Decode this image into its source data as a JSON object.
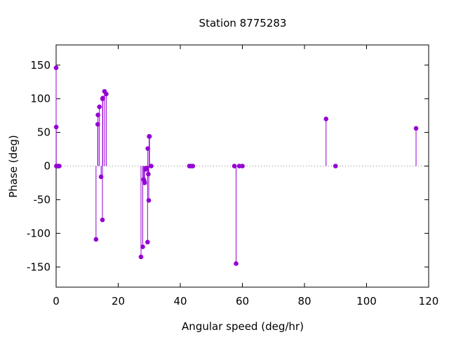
{
  "chart_data": {
    "type": "scatter",
    "style": "impulses-with-points",
    "title": "Station 8775283",
    "xlabel": "Angular speed (deg/hr)",
    "ylabel": "Phase (deg)",
    "xlim": [
      0,
      120
    ],
    "ylim": [
      -180,
      180
    ],
    "xticks": [
      0,
      20,
      40,
      60,
      80,
      100,
      120
    ],
    "yticks": [
      -150,
      -100,
      -50,
      0,
      50,
      100,
      150
    ],
    "zero_line": "dotted",
    "grid": false,
    "legend": "none",
    "series": [
      {
        "color": "#9400d3",
        "points": [
          {
            "x": 0.0,
            "y": 146
          },
          {
            "x": 0.04,
            "y": 58
          },
          {
            "x": 0.08,
            "y": 0
          },
          {
            "x": 0.5,
            "y": 0
          },
          {
            "x": 0.55,
            "y": 0
          },
          {
            "x": 1.0,
            "y": 0
          },
          {
            "x": 12.85,
            "y": -109
          },
          {
            "x": 13.4,
            "y": 62
          },
          {
            "x": 13.47,
            "y": 76
          },
          {
            "x": 13.94,
            "y": 88
          },
          {
            "x": 14.49,
            "y": -16
          },
          {
            "x": 14.92,
            "y": -80
          },
          {
            "x": 14.96,
            "y": 100
          },
          {
            "x": 15.04,
            "y": 101
          },
          {
            "x": 15.59,
            "y": 111
          },
          {
            "x": 16.14,
            "y": 107
          },
          {
            "x": 27.34,
            "y": -135
          },
          {
            "x": 27.9,
            "y": -120
          },
          {
            "x": 28.2,
            "y": -20
          },
          {
            "x": 28.44,
            "y": -23
          },
          {
            "x": 28.51,
            "y": -25
          },
          {
            "x": 28.8,
            "y": -5
          },
          {
            "x": 29.46,
            "y": -113
          },
          {
            "x": 29.53,
            "y": 26
          },
          {
            "x": 29.0,
            "y": -3
          },
          {
            "x": 29.7,
            "y": -12
          },
          {
            "x": 29.84,
            "y": -51
          },
          {
            "x": 29.96,
            "y": 44
          },
          {
            "x": 30.08,
            "y": 44
          },
          {
            "x": 30.63,
            "y": 0
          },
          {
            "x": 42.93,
            "y": 0
          },
          {
            "x": 43.48,
            "y": 0
          },
          {
            "x": 44.03,
            "y": 0
          },
          {
            "x": 57.42,
            "y": 0
          },
          {
            "x": 57.97,
            "y": -145
          },
          {
            "x": 58.98,
            "y": 0
          },
          {
            "x": 60.0,
            "y": 0
          },
          {
            "x": 86.95,
            "y": 70
          },
          {
            "x": 90.0,
            "y": 0
          },
          {
            "x": 115.94,
            "y": 56
          }
        ]
      }
    ]
  }
}
